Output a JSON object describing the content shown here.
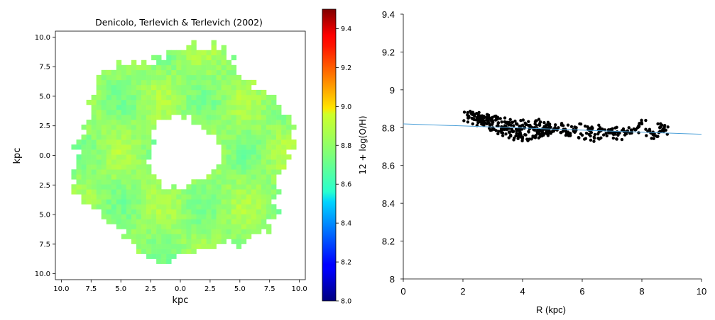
{
  "chart_data": [
    {
      "type": "heatmap",
      "title": "Denicolo, Terlevich & Terlevich (2002)",
      "xlabel": "kpc",
      "ylabel": "kpc",
      "x_ticks": [
        "10.0",
        "7.5",
        "5.0",
        "2.5",
        "0.0",
        "2.5",
        "5.0",
        "7.5",
        "10.0"
      ],
      "y_ticks": [
        "10.0",
        "7.5",
        "5.0",
        "2.5",
        "0.0",
        "2.5",
        "5.0",
        "7.5",
        "10.0"
      ],
      "xlim": [
        -10.5,
        10.5
      ],
      "ylim": [
        -10.5,
        10.5
      ],
      "colorbar": {
        "label": "12 + log(O/H)",
        "range": [
          8.0,
          9.5
        ],
        "ticks": [
          "8.0",
          "8.2",
          "8.4",
          "8.6",
          "8.8",
          "9.0",
          "9.2",
          "9.4"
        ],
        "colormap": "jet"
      },
      "map": {
        "inner_radius_kpc": 3.0,
        "outer_radius_kpc": 9.0,
        "mean_value": 8.78,
        "value_range": [
          8.68,
          8.95
        ]
      }
    },
    {
      "type": "scatter",
      "xlabel": "R (kpc)",
      "ylabel": "",
      "xlim": [
        0,
        10
      ],
      "ylim": [
        8,
        9.4
      ],
      "x_ticks": [
        "0",
        "2",
        "4",
        "6",
        "8",
        "10"
      ],
      "y_ticks": [
        "8",
        "8.2",
        "8.4",
        "8.6",
        "8.8",
        "9",
        "9.2",
        "9.4"
      ],
      "points": [
        [
          2.2,
          8.86
        ],
        [
          2.3,
          8.85
        ],
        [
          2.4,
          8.87
        ],
        [
          2.5,
          8.84
        ],
        [
          2.6,
          8.83
        ],
        [
          2.7,
          8.86
        ],
        [
          2.8,
          8.82
        ],
        [
          2.9,
          8.85
        ],
        [
          3.0,
          8.8
        ],
        [
          3.1,
          8.84
        ],
        [
          3.2,
          8.78
        ],
        [
          3.3,
          8.83
        ],
        [
          3.4,
          8.79
        ],
        [
          3.5,
          8.82
        ],
        [
          3.6,
          8.76
        ],
        [
          3.7,
          8.81
        ],
        [
          3.8,
          8.77
        ],
        [
          3.9,
          8.8
        ],
        [
          4.0,
          8.75
        ],
        [
          4.1,
          8.82
        ],
        [
          4.2,
          8.78
        ],
        [
          4.3,
          8.74
        ],
        [
          4.4,
          8.8
        ],
        [
          4.5,
          8.77
        ],
        [
          4.6,
          8.83
        ],
        [
          4.7,
          8.76
        ],
        [
          4.8,
          8.79
        ],
        [
          4.9,
          8.81
        ],
        [
          5.0,
          8.78
        ],
        [
          5.2,
          8.8
        ],
        [
          5.4,
          8.79
        ],
        [
          5.6,
          8.77
        ],
        [
          5.8,
          8.8
        ],
        [
          6.0,
          8.76
        ],
        [
          6.2,
          8.79
        ],
        [
          6.4,
          8.75
        ],
        [
          6.6,
          8.8
        ],
        [
          6.8,
          8.77
        ],
        [
          7.0,
          8.79
        ],
        [
          7.2,
          8.76
        ],
        [
          7.4,
          8.78
        ],
        [
          7.6,
          8.77
        ],
        [
          7.8,
          8.79
        ],
        [
          8.0,
          8.82
        ],
        [
          8.2,
          8.78
        ],
        [
          8.4,
          8.76
        ],
        [
          8.6,
          8.8
        ],
        [
          8.7,
          8.79
        ]
      ],
      "fit_line": {
        "x": [
          0,
          10
        ],
        "y": [
          8.82,
          8.765
        ],
        "color": "#4a9fd8"
      },
      "marker_color": "#000000"
    }
  ]
}
